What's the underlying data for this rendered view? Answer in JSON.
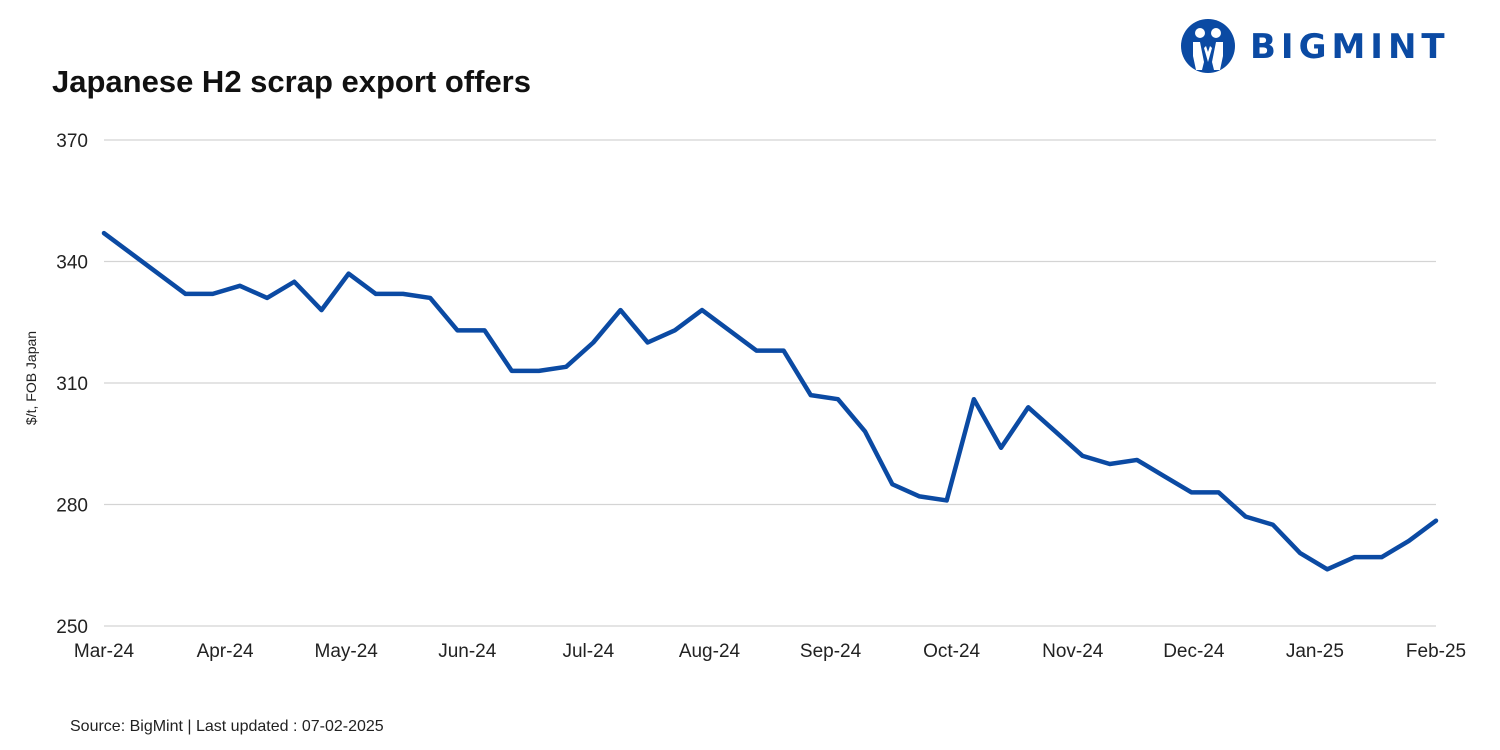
{
  "brand": {
    "name": "BIGMINT",
    "logo_icon": "bigmint-logo-icon",
    "color": "#0b4aa3"
  },
  "chart_data": {
    "type": "line",
    "title": "Japanese H2 scrap export offers",
    "ylabel": "$/t, FOB Japan",
    "xlabel": "",
    "ylim": [
      250,
      370
    ],
    "yticks": [
      250,
      280,
      310,
      340,
      370
    ],
    "x_tick_labels": [
      "Mar-24",
      "Apr-24",
      "May-24",
      "Jun-24",
      "Jul-24",
      "Aug-24",
      "Sep-24",
      "Oct-24",
      "Nov-24",
      "Dec-24",
      "Jan-25",
      "Feb-25"
    ],
    "grid": true,
    "legend": "none",
    "series": [
      {
        "color": "#0b4aa3",
        "values": [
          347,
          342,
          337,
          332,
          332,
          334,
          331,
          335,
          328,
          337,
          332,
          332,
          331,
          323,
          323,
          313,
          313,
          314,
          320,
          328,
          320,
          323,
          328,
          323,
          318,
          318,
          307,
          306,
          298,
          285,
          282,
          281,
          306,
          294,
          304,
          298,
          292,
          290,
          291,
          287,
          283,
          283,
          277,
          275,
          268,
          264,
          267,
          267,
          271,
          276
        ]
      }
    ]
  },
  "footer": {
    "source_text": "Source: BigMint  | Last updated : 07-02-2025"
  }
}
